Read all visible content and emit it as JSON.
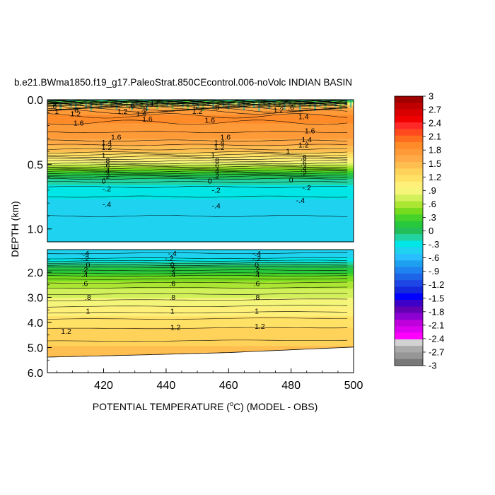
{
  "chart_data": {
    "type": "heatmap",
    "title": "b.e21.BWma1850.f19_g17.PaleoStrat.850CEcontrol.006-noVolc INDIAN BASIN",
    "xlabel_pre": "POTENTIAL TEMPERATURE (",
    "xlabel_sup": "o",
    "xlabel_post": "C) (MODEL - OBS)",
    "ylabel": "DEPTH (km)",
    "xlim": [
      402,
      500
    ],
    "x_ticks": [
      420,
      440,
      460,
      480,
      500
    ],
    "x_tick_labels": [
      "420",
      "440",
      "460",
      "480",
      "500"
    ],
    "upper_panel": {
      "ylim": [
        0.0,
        1.1
      ],
      "y_ticks": [
        0.0,
        0.5,
        1.0
      ],
      "y_tick_labels": [
        "0.0",
        "0.5",
        "1.0"
      ]
    },
    "lower_panel": {
      "ylim": [
        1.1,
        6.0
      ],
      "y_ticks": [
        2.0,
        3.0,
        4.0,
        5.0,
        6.0
      ],
      "y_tick_labels": [
        "2.0",
        "3.0",
        "4.0",
        "5.0",
        "6.0"
      ]
    },
    "bottom_depth_curve": {
      "x": [
        402,
        430,
        460,
        500
      ],
      "y": [
        5.38,
        5.3,
        5.2,
        4.98
      ]
    },
    "upper_profile": {
      "depth": [
        0.0,
        0.02,
        0.05,
        0.1,
        0.15,
        0.2,
        0.3,
        0.4,
        0.45,
        0.5,
        0.55,
        0.6,
        0.65,
        0.7,
        0.75,
        0.8,
        0.9,
        1.1
      ],
      "value": [
        -0.3,
        0.6,
        1.4,
        1.8,
        1.9,
        1.8,
        1.7,
        1.4,
        1.1,
        0.8,
        0.4,
        0.0,
        -0.2,
        -0.3,
        -0.35,
        -0.4,
        -0.45,
        -0.5
      ]
    },
    "lower_profile": {
      "depth": [
        1.1,
        1.25,
        1.4,
        1.6,
        1.8,
        2.0,
        2.2,
        2.5,
        3.0,
        3.5,
        4.0,
        4.5,
        5.0,
        5.4
      ],
      "value": [
        -0.5,
        -0.45,
        -0.4,
        -0.2,
        0.05,
        0.2,
        0.4,
        0.6,
        0.8,
        1.0,
        1.2,
        1.3,
        1.4,
        1.45
      ]
    },
    "contour_labels_upper": [
      {
        "text": "1.4",
        "x": 421,
        "y": 0.33
      },
      {
        "text": "1.2",
        "x": 421,
        "y": 0.37
      },
      {
        "text": "1",
        "x": 420,
        "y": 0.43
      },
      {
        "text": ".8",
        "x": 421,
        "y": 0.47
      },
      {
        "text": ".6",
        "x": 421,
        "y": 0.51
      },
      {
        "text": ".4",
        "x": 421,
        "y": 0.55
      },
      {
        "text": ".2",
        "x": 421,
        "y": 0.59
      },
      {
        "text": "0",
        "x": 420,
        "y": 0.63
      },
      {
        "text": "-.2",
        "x": 421,
        "y": 0.69
      },
      {
        "text": "-.4",
        "x": 421,
        "y": 0.81
      },
      {
        "text": "1.6",
        "x": 424,
        "y": 0.29
      },
      {
        "text": "1.6",
        "x": 459,
        "y": 0.29
      },
      {
        "text": "1.4",
        "x": 457,
        "y": 0.33
      },
      {
        "text": "1.2",
        "x": 457,
        "y": 0.37
      },
      {
        "text": "1",
        "x": 455,
        "y": 0.43
      },
      {
        "text": ".8",
        "x": 456,
        "y": 0.47
      },
      {
        "text": ".6",
        "x": 456,
        "y": 0.51
      },
      {
        "text": ".4",
        "x": 456,
        "y": 0.55
      },
      {
        "text": ".2",
        "x": 456,
        "y": 0.59
      },
      {
        "text": "0",
        "x": 454,
        "y": 0.63
      },
      {
        "text": "-.2",
        "x": 456,
        "y": 0.7
      },
      {
        "text": "-.4",
        "x": 456,
        "y": 0.82
      },
      {
        "text": "1.4",
        "x": 485,
        "y": 0.31
      },
      {
        "text": "1.2",
        "x": 484,
        "y": 0.35
      },
      {
        "text": "1",
        "x": 479,
        "y": 0.4
      },
      {
        "text": ".8",
        "x": 484,
        "y": 0.45
      },
      {
        "text": ".6",
        "x": 484,
        "y": 0.49
      },
      {
        "text": ".4",
        "x": 484,
        "y": 0.53
      },
      {
        "text": ".2",
        "x": 484,
        "y": 0.57
      },
      {
        "text": "0",
        "x": 480,
        "y": 0.62
      },
      {
        "text": "-.2",
        "x": 485,
        "y": 0.68
      },
      {
        "text": "-.4",
        "x": 483,
        "y": 0.78
      },
      {
        "text": ".6",
        "x": 404,
        "y": 0.05
      },
      {
        "text": "1",
        "x": 405,
        "y": 0.09
      },
      {
        "text": ".8",
        "x": 411,
        "y": 0.08
      },
      {
        "text": "1.2",
        "x": 411,
        "y": 0.11
      },
      {
        "text": "1.6",
        "x": 412,
        "y": 0.18
      },
      {
        "text": "1.2",
        "x": 426,
        "y": 0.09
      },
      {
        "text": ".6",
        "x": 429,
        "y": 0.05
      },
      {
        "text": ".4",
        "x": 435,
        "y": 0.03
      },
      {
        "text": ".8",
        "x": 433,
        "y": 0.07
      },
      {
        "text": "1.4",
        "x": 432,
        "y": 0.11
      },
      {
        "text": "1.6",
        "x": 434,
        "y": 0.15
      },
      {
        "text": "1.2",
        "x": 450,
        "y": 0.09
      },
      {
        "text": ".6",
        "x": 449,
        "y": 0.06
      },
      {
        "text": ".8",
        "x": 456,
        "y": 0.06
      },
      {
        "text": "1.6",
        "x": 454,
        "y": 0.16
      },
      {
        "text": "1.2",
        "x": 476,
        "y": 0.08
      },
      {
        "text": "1.4",
        "x": 484,
        "y": 0.13
      },
      {
        "text": ".6",
        "x": 480,
        "y": 0.06
      },
      {
        "text": "1.6",
        "x": 486,
        "y": 0.24
      }
    ],
    "contour_labels_lower": [
      {
        "text": "-.4",
        "x": 414,
        "y": 1.25
      },
      {
        "text": "-.2",
        "x": 414,
        "y": 1.45
      },
      {
        "text": "0",
        "x": 415,
        "y": 1.7
      },
      {
        "text": ".2",
        "x": 414,
        "y": 1.9
      },
      {
        "text": ".4",
        "x": 414,
        "y": 2.1
      },
      {
        "text": ".6",
        "x": 414,
        "y": 2.45
      },
      {
        "text": ".8",
        "x": 415,
        "y": 3.0
      },
      {
        "text": "1",
        "x": 415,
        "y": 3.55
      },
      {
        "text": "1.2",
        "x": 408,
        "y": 4.35
      },
      {
        "text": "-.4",
        "x": 442,
        "y": 1.25
      },
      {
        "text": "-.2",
        "x": 441,
        "y": 1.45
      },
      {
        "text": "0",
        "x": 442,
        "y": 1.7
      },
      {
        "text": ".2",
        "x": 442,
        "y": 1.9
      },
      {
        "text": ".4",
        "x": 442,
        "y": 2.1
      },
      {
        "text": ".6",
        "x": 442,
        "y": 2.45
      },
      {
        "text": ".8",
        "x": 442,
        "y": 3.0
      },
      {
        "text": "1",
        "x": 442,
        "y": 3.55
      },
      {
        "text": "1.2",
        "x": 443,
        "y": 4.2
      },
      {
        "text": "-.4",
        "x": 469,
        "y": 1.25
      },
      {
        "text": "-.2",
        "x": 469,
        "y": 1.45
      },
      {
        "text": "0",
        "x": 469,
        "y": 1.7
      },
      {
        "text": ".2",
        "x": 469,
        "y": 1.9
      },
      {
        "text": ".4",
        "x": 469,
        "y": 2.1
      },
      {
        "text": ".6",
        "x": 469,
        "y": 2.45
      },
      {
        "text": ".8",
        "x": 469,
        "y": 3.0
      },
      {
        "text": "1",
        "x": 469,
        "y": 3.55
      },
      {
        "text": "1.2",
        "x": 470,
        "y": 4.15
      }
    ],
    "colorbar": {
      "levels": [
        "3",
        "2.7",
        "2.4",
        "2.1",
        "1.8",
        "1.5",
        "1.2",
        ".9",
        ".6",
        ".3",
        "0",
        "-.3",
        "-.6",
        "-.9",
        "-1.2",
        "-1.5",
        "-1.8",
        "-2.1",
        "-2.4",
        "-2.7",
        "-3"
      ],
      "colors": [
        "#a00000",
        "#c00000",
        "#d80000",
        "#f00000",
        "#ff2828",
        "#ff4a1e",
        "#ff6e1e",
        "#ff8a28",
        "#ff9a38",
        "#ffaa46",
        "#ffbe50",
        "#ffd25a",
        "#ffe166",
        "#fff07a",
        "#f5f57a",
        "#d2f05a",
        "#aae632",
        "#78dc1e",
        "#46d228",
        "#28c83c",
        "#22be5a",
        "#22d2a0",
        "#00e6e6",
        "#1ed2f0",
        "#28beff",
        "#1ea0f0",
        "#1e82f0",
        "#1e64e6",
        "#1e46e6",
        "#1428dc",
        "#0000ff",
        "#3c00c8",
        "#6400b4",
        "#8c00d2",
        "#be00dc",
        "#dc00f0",
        "#ff00ff",
        "#d2d2d2",
        "#aaaaaa",
        "#969696",
        "#787878"
      ]
    },
    "contour_levels": [
      -0.4,
      -0.2,
      0,
      0.2,
      0.4,
      0.6,
      0.8,
      1.0,
      1.2,
      1.4,
      1.6
    ]
  }
}
